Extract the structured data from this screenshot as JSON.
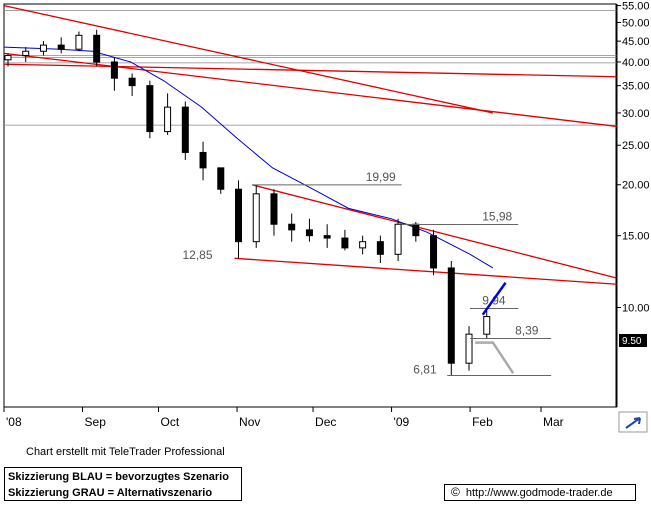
{
  "chart_data": {
    "type": "candlestick",
    "title": "",
    "xlabel": "",
    "ylabel": "",
    "scale": "log",
    "ylim": [
      5.7,
      55.5
    ],
    "y_ticks": [
      55,
      50,
      45,
      40,
      35,
      30,
      25,
      20,
      15,
      10
    ],
    "y_tick_labels": [
      "55.00",
      "50.00",
      "45.00",
      "40.00",
      "35.00",
      "30.00",
      "25.00",
      "20.00",
      "15.00",
      "10.00"
    ],
    "x_ticks": [
      {
        "label": "'08",
        "date": "2008-08-01"
      },
      {
        "label": "Sep",
        "date": "2008-09-01"
      },
      {
        "label": "Oct",
        "date": "2008-10-01"
      },
      {
        "label": "Nov",
        "date": "2008-11-01"
      },
      {
        "label": "Dec",
        "date": "2008-12-01"
      },
      {
        "label": "'09",
        "date": "2009-01-01"
      },
      {
        "label": "Feb",
        "date": "2009-02-01"
      },
      {
        "label": "Mar",
        "date": "2009-03-01"
      }
    ],
    "last_price": "9.50",
    "grid": {
      "horizontal": [
        53.5,
        41.5,
        41.0,
        39.8,
        28.0
      ]
    },
    "ohlc_weekly": [
      {
        "date": "2008-08-01",
        "open": 40.5,
        "high": 42.0,
        "low": 39.0,
        "close": 41.5
      },
      {
        "date": "2008-08-08",
        "open": 41.5,
        "high": 43.5,
        "low": 40.0,
        "close": 42.5
      },
      {
        "date": "2008-08-15",
        "open": 42.5,
        "high": 45.0,
        "low": 41.5,
        "close": 44.0
      },
      {
        "date": "2008-08-22",
        "open": 44.0,
        "high": 46.0,
        "low": 42.0,
        "close": 43.0
      },
      {
        "date": "2008-08-29",
        "open": 43.0,
        "high": 47.5,
        "low": 42.5,
        "close": 46.5
      },
      {
        "date": "2008-09-05",
        "open": 46.5,
        "high": 48.0,
        "low": 39.0,
        "close": 40.0
      },
      {
        "date": "2008-09-12",
        "open": 40.0,
        "high": 41.0,
        "low": 34.0,
        "close": 36.5
      },
      {
        "date": "2008-09-19",
        "open": 36.5,
        "high": 37.5,
        "low": 33.0,
        "close": 35.0
      },
      {
        "date": "2008-09-26",
        "open": 35.0,
        "high": 36.0,
        "low": 26.0,
        "close": 27.0
      },
      {
        "date": "2008-10-03",
        "open": 27.0,
        "high": 33.5,
        "low": 26.5,
        "close": 31.0
      },
      {
        "date": "2008-10-10",
        "open": 31.0,
        "high": 32.0,
        "low": 23.0,
        "close": 24.0
      },
      {
        "date": "2008-10-17",
        "open": 24.0,
        "high": 25.5,
        "low": 20.5,
        "close": 22.0
      },
      {
        "date": "2008-10-24",
        "open": 22.0,
        "high": 21.5,
        "low": 19.0,
        "close": 19.5
      },
      {
        "date": "2008-10-31",
        "open": 19.5,
        "high": 20.5,
        "low": 13.2,
        "close": 14.5
      },
      {
        "date": "2008-11-07",
        "open": 14.5,
        "high": 19.99,
        "low": 14.0,
        "close": 19.0
      },
      {
        "date": "2008-11-14",
        "open": 19.0,
        "high": 19.5,
        "low": 15.0,
        "close": 16.0
      },
      {
        "date": "2008-11-21",
        "open": 16.0,
        "high": 17.0,
        "low": 14.5,
        "close": 15.5
      },
      {
        "date": "2008-11-28",
        "open": 15.5,
        "high": 16.5,
        "low": 14.5,
        "close": 15.0
      },
      {
        "date": "2008-12-05",
        "open": 15.0,
        "high": 16.0,
        "low": 14.0,
        "close": 14.8
      },
      {
        "date": "2008-12-12",
        "open": 14.8,
        "high": 15.5,
        "low": 13.8,
        "close": 14.0
      },
      {
        "date": "2008-12-19",
        "open": 14.0,
        "high": 15.0,
        "low": 13.5,
        "close": 14.5
      },
      {
        "date": "2008-12-26",
        "open": 14.5,
        "high": 15.0,
        "low": 12.85,
        "close": 13.5
      },
      {
        "date": "2009-01-02",
        "open": 13.5,
        "high": 16.5,
        "low": 13.0,
        "close": 16.0
      },
      {
        "date": "2009-01-09",
        "open": 16.0,
        "high": 16.2,
        "low": 14.5,
        "close": 15.0
      },
      {
        "date": "2009-01-16",
        "open": 15.0,
        "high": 15.5,
        "low": 12.0,
        "close": 12.5
      },
      {
        "date": "2009-01-23",
        "open": 12.5,
        "high": 13.0,
        "low": 6.81,
        "close": 7.3
      },
      {
        "date": "2009-01-30",
        "open": 7.3,
        "high": 9.0,
        "low": 7.0,
        "close": 8.6
      },
      {
        "date": "2009-02-06",
        "open": 8.6,
        "high": 9.8,
        "low": 8.4,
        "close": 9.5
      }
    ],
    "moving_average": [
      {
        "date": "2008-08-01",
        "value": 43.5
      },
      {
        "date": "2008-08-22",
        "value": 43.0
      },
      {
        "date": "2008-09-05",
        "value": 42.5
      },
      {
        "date": "2008-09-20",
        "value": 40.0
      },
      {
        "date": "2008-10-03",
        "value": 36.0
      },
      {
        "date": "2008-10-18",
        "value": 31.0
      },
      {
        "date": "2008-11-01",
        "value": 26.0
      },
      {
        "date": "2008-11-15",
        "value": 22.0
      },
      {
        "date": "2008-12-01",
        "value": 19.5
      },
      {
        "date": "2008-12-15",
        "value": 17.5
      },
      {
        "date": "2009-01-01",
        "value": 16.5
      },
      {
        "date": "2009-01-15",
        "value": 15.3
      },
      {
        "date": "2009-02-01",
        "value": 13.5
      },
      {
        "date": "2009-02-10",
        "value": 12.5
      }
    ],
    "trend_lines": [
      {
        "color": "#dd0000",
        "x1": "2008-08-01",
        "y1": 55.0,
        "x2": "2009-02-10",
        "y2": 30.0
      },
      {
        "color": "#dd0000",
        "x1": "2008-08-01",
        "y1": 39.5,
        "x2": "2009-03-31",
        "y2": 36.8
      },
      {
        "color": "#dd0000",
        "x1": "2008-08-01",
        "y1": 42.0,
        "x2": "2009-03-31",
        "y2": 27.8
      },
      {
        "color": "#dd0000",
        "x1": "2008-11-07",
        "y1": 19.99,
        "x2": "2009-03-31",
        "y2": 11.8
      },
      {
        "color": "#dd0000",
        "x1": "2008-10-31",
        "y1": 13.2,
        "x2": "2009-03-31",
        "y2": 11.4
      }
    ],
    "horizontal_levels": [
      {
        "label": "19,99",
        "value": 19.99,
        "x1": "2008-11-07",
        "x2": "2009-01-05"
      },
      {
        "label": "15,98",
        "value": 15.98,
        "x1": "2009-01-05",
        "x2": "2009-02-20"
      },
      {
        "label": "12,85",
        "value": 12.85,
        "x1": "2008-10-31",
        "x2": "2008-10-31"
      },
      {
        "label": "9,94",
        "value": 9.94,
        "x1": "2009-02-01",
        "x2": "2009-02-20"
      },
      {
        "label": "8,39",
        "value": 8.39,
        "x1": "2009-02-01",
        "x2": "2009-03-05"
      },
      {
        "label": "6,81",
        "value": 6.81,
        "x1": "2009-01-23",
        "x2": "2009-03-05"
      }
    ],
    "scenario_blue": [
      {
        "date": "2009-02-06",
        "value": 9.6
      },
      {
        "date": "2009-02-15",
        "value": 11.5
      }
    ],
    "scenario_grey": [
      {
        "date": "2009-02-03",
        "value": 8.2
      },
      {
        "date": "2009-02-10",
        "value": 8.2
      },
      {
        "date": "2009-02-18",
        "value": 6.9
      }
    ],
    "colors": {
      "candle": "#000000",
      "moving_average": "#0000cc",
      "trend": "#dd0000",
      "scenario_blue": "#0000ee",
      "scenario_grey": "#aaaaaa",
      "level": "#666666",
      "grid": "#888888"
    }
  },
  "footer": {
    "credit": "Chart erstellt mit TeleTrader Professional",
    "legend_blue": "Skizzierung BLAU = bevorzugtes Szenario",
    "legend_grey": "Skizzierung GRAU = Alternativszenario",
    "copyright_symbol": "©",
    "url": "http://www.godmode-trader.de"
  }
}
